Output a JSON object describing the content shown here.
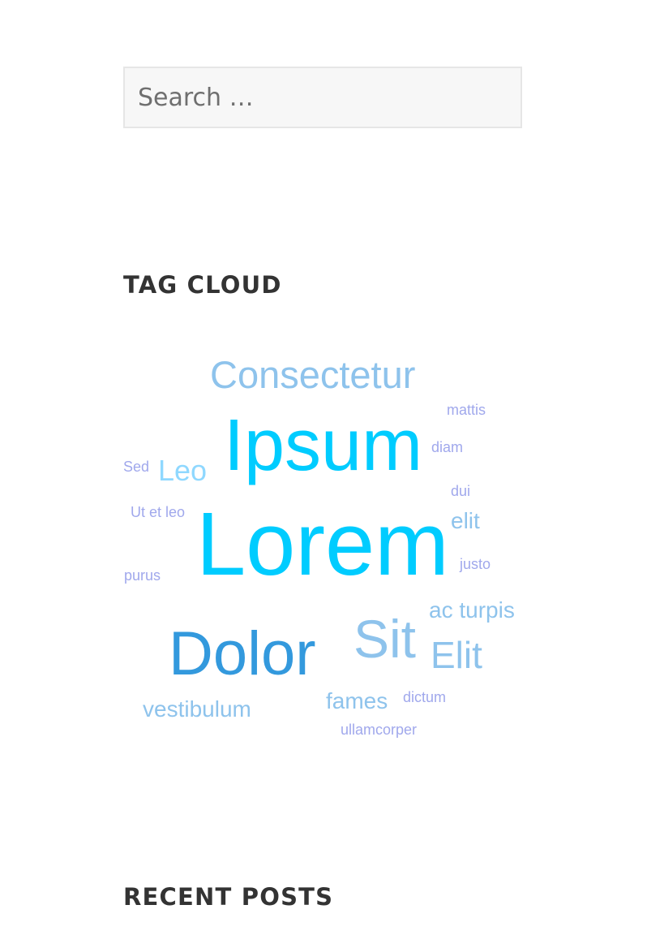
{
  "search": {
    "placeholder": "Search …",
    "value": ""
  },
  "widgets": {
    "tag_cloud_title": "TAG CLOUD",
    "recent_posts_title": "RECENT POSTS"
  },
  "tag_cloud": {
    "tags": [
      {
        "label": "Consectetur",
        "color": "#8ec3ec"
      },
      {
        "label": "mattis",
        "color": "#a0a8ec"
      },
      {
        "label": "Ipsum",
        "color": "#00ccff"
      },
      {
        "label": "diam",
        "color": "#a0a8ec"
      },
      {
        "label": "Sed",
        "color": "#a0a8ec"
      },
      {
        "label": "Leo",
        "color": "#8fd8ff"
      },
      {
        "label": "dui",
        "color": "#a0a8ec"
      },
      {
        "label": "Ut et leo",
        "color": "#a0a8ec"
      },
      {
        "label": "elit",
        "color": "#8ec3ec"
      },
      {
        "label": "Lorem",
        "color": "#00ccff"
      },
      {
        "label": "justo",
        "color": "#a0a8ec"
      },
      {
        "label": "purus",
        "color": "#a0a8ec"
      },
      {
        "label": "ac turpis",
        "color": "#8ec3ec"
      },
      {
        "label": "Sit",
        "color": "#8ec3ec"
      },
      {
        "label": "Elit",
        "color": "#8ec3ec"
      },
      {
        "label": "Dolor",
        "color": "#3399dd"
      },
      {
        "label": "fames",
        "color": "#8ec3ec"
      },
      {
        "label": "dictum",
        "color": "#a0a8ec"
      },
      {
        "label": "vestibulum",
        "color": "#8ec3ec"
      },
      {
        "label": "ullamcorper",
        "color": "#a0a8ec"
      }
    ]
  }
}
